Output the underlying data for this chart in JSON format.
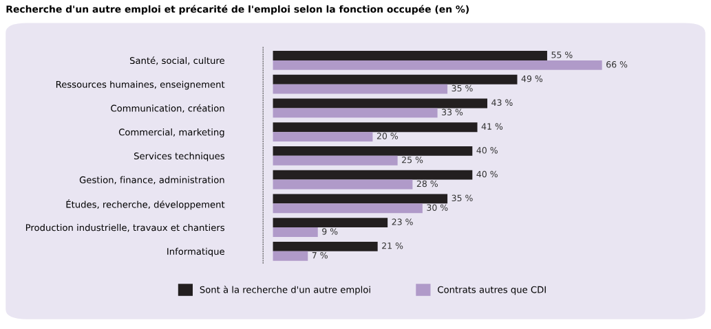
{
  "chart_data": {
    "type": "bar",
    "orientation": "horizontal",
    "title": "Recherche d'un autre emploi et précarité de l'emploi selon la fonction occupée (en %)",
    "categories": [
      "Santé, social, culture",
      "Ressources humaines, enseignement",
      "Communication, création",
      "Commercial, marketing",
      "Services techniques",
      "Gestion, finance, administration",
      "Études, recherche, développement",
      "Production industrielle, travaux et chantiers",
      "Informatique"
    ],
    "series": [
      {
        "name": "Sont à la recherche d'un autre emploi",
        "color": "#231f20",
        "values": [
          55,
          49,
          43,
          41,
          40,
          40,
          35,
          23,
          21
        ],
        "value_labels": [
          "55 %",
          "49 %",
          "43 %",
          "41 %",
          "40 %",
          "40 %",
          "35 %",
          "23 %",
          "21 %"
        ]
      },
      {
        "name": "Contrats autres que CDI",
        "color": "#b09ac9",
        "values": [
          66,
          35,
          33,
          20,
          25,
          28,
          30,
          9,
          7
        ],
        "value_labels": [
          "66 %",
          "35 %",
          "33 %",
          "20 %",
          "25 %",
          "28 %",
          "30 %",
          "9 %",
          "7 %"
        ]
      }
    ],
    "legend": "bottom",
    "grid": false
  }
}
